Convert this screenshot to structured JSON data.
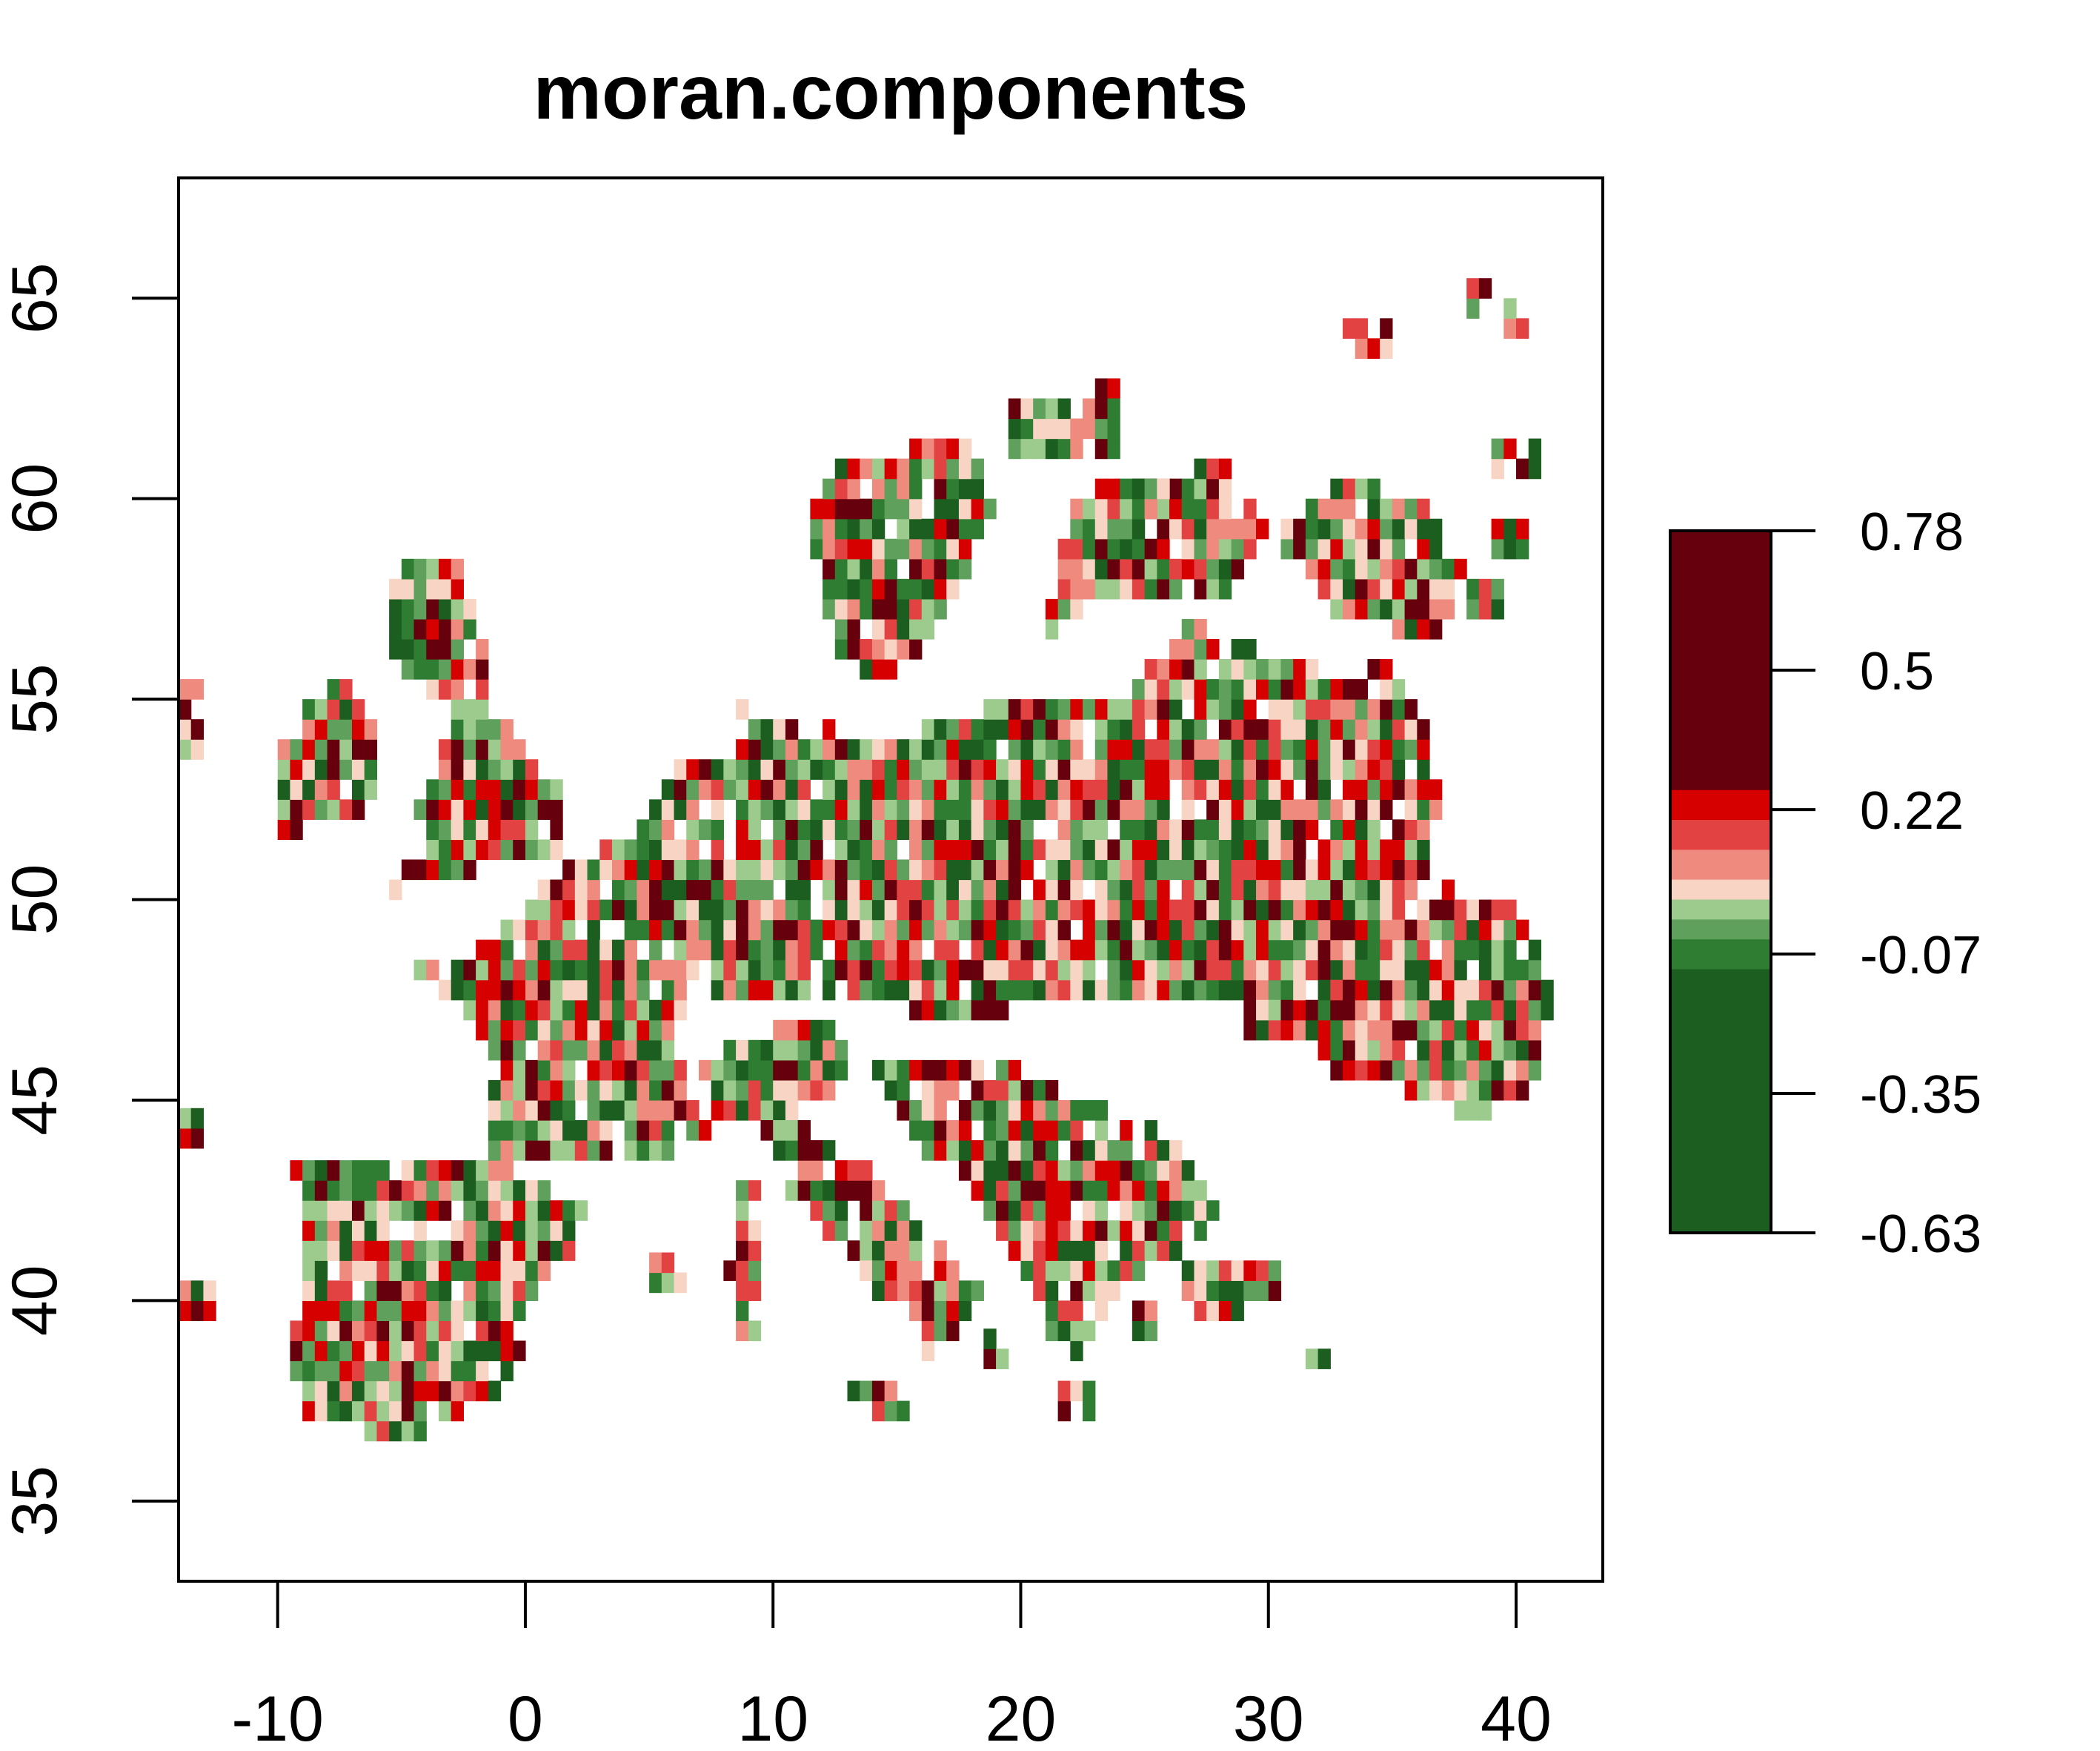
{
  "chart_data": {
    "type": "heatmap",
    "title": "moran.components",
    "xlabel": "",
    "ylabel": "",
    "xlim": [
      -14,
      43.5
    ],
    "ylim": [
      33,
      68
    ],
    "x_ticks": [
      -10,
      0,
      10,
      20,
      30,
      40
    ],
    "x_tick_labels": [
      "-10",
      "0",
      "10",
      "20",
      "30",
      "40"
    ],
    "y_ticks": [
      35,
      40,
      45,
      50,
      55,
      60,
      65
    ],
    "y_tick_labels": [
      "35",
      "40",
      "45",
      "50",
      "55",
      "60",
      "65"
    ],
    "grid": false,
    "legend": {
      "type": "colorbar",
      "position": "right",
      "min": -0.63,
      "max": 0.78,
      "ticks": [
        -0.63,
        -0.35,
        -0.07,
        0.22,
        0.5,
        0.78
      ],
      "tick_labels": [
        "-0.63",
        "-0.35",
        "-0.07",
        "0.22",
        "0.5",
        "0.78"
      ],
      "stops": [
        {
          "from": -0.63,
          "to": -0.1,
          "color": "#1B5E20"
        },
        {
          "from": -0.1,
          "to": -0.04,
          "color": "#2E7D32"
        },
        {
          "from": -0.04,
          "to": 0.0,
          "color": "#5FA05C"
        },
        {
          "from": 0.0,
          "to": 0.04,
          "color": "#9CCB8D"
        },
        {
          "from": 0.04,
          "to": 0.08,
          "color": "#F7D4C4"
        },
        {
          "from": 0.08,
          "to": 0.14,
          "color": "#EE8A7E"
        },
        {
          "from": 0.14,
          "to": 0.2,
          "color": "#E34242"
        },
        {
          "from": 0.2,
          "to": 0.26,
          "color": "#D70000"
        },
        {
          "from": 0.26,
          "to": 0.78,
          "color": "#67000D"
        }
      ]
    },
    "cell_size_degrees": 0.5,
    "palette": [
      "#1B5E20",
      "#2E7D32",
      "#5FA05C",
      "#9CCB8D",
      "#F7D4C4",
      "#EE8A7E",
      "#E34242",
      "#D70000",
      "#67000D"
    ],
    "regions": [
      {
        "name": "Iberia",
        "polygon": [
          [
            -9.5,
            43.7
          ],
          [
            -1.5,
            43.5
          ],
          [
            3.2,
            42.0
          ],
          [
            0.5,
            40.5
          ],
          [
            -0.3,
            39.3
          ],
          [
            0.0,
            38.7
          ],
          [
            -1.5,
            37.5
          ],
          [
            -5.5,
            36.3
          ],
          [
            -7.5,
            37.1
          ],
          [
            -8.9,
            37.0
          ],
          [
            -9.5,
            38.8
          ],
          [
            -8.9,
            40.5
          ],
          [
            -8.8,
            42.0
          ]
        ]
      },
      {
        "name": "France-Benelux",
        "polygon": [
          [
            -4.7,
            48.4
          ],
          [
            -1.5,
            48.8
          ],
          [
            1.6,
            50.9
          ],
          [
            4.5,
            51.6
          ],
          [
            6.0,
            53.4
          ],
          [
            8.5,
            53.7
          ],
          [
            7.5,
            49.0
          ],
          [
            6.0,
            46.5
          ],
          [
            7.5,
            44.0
          ],
          [
            3.0,
            43.3
          ],
          [
            -1.4,
            43.4
          ],
          [
            -1.2,
            46.2
          ],
          [
            -2.5,
            47.3
          ]
        ]
      },
      {
        "name": "Central Europe",
        "polygon": [
          [
            8.5,
            54.8
          ],
          [
            10.5,
            54.5
          ],
          [
            14.5,
            54.0
          ],
          [
            18.5,
            54.8
          ],
          [
            24.0,
            55.0
          ],
          [
            27.0,
            57.0
          ],
          [
            28.5,
            56.5
          ],
          [
            33.0,
            55.5
          ],
          [
            35.0,
            56.0
          ],
          [
            36.5,
            54.0
          ],
          [
            37.0,
            52.0
          ],
          [
            36.0,
            50.0
          ],
          [
            33.0,
            48.0
          ],
          [
            29.5,
            47.5
          ],
          [
            26.5,
            47.5
          ],
          [
            22.5,
            47.6
          ],
          [
            17.5,
            47.0
          ],
          [
            13.5,
            47.5
          ],
          [
            10.5,
            47.4
          ],
          [
            7.5,
            47.6
          ],
          [
            7.0,
            49.5
          ],
          [
            8.5,
            51.5
          ]
        ]
      },
      {
        "name": "Ukraine-East",
        "polygon": [
          [
            29.5,
            49.0
          ],
          [
            33.0,
            49.5
          ],
          [
            37.5,
            50.3
          ],
          [
            40.2,
            49.7
          ],
          [
            41.5,
            47.5
          ],
          [
            40.5,
            45.0
          ],
          [
            38.0,
            44.5
          ],
          [
            36.0,
            45.2
          ],
          [
            33.0,
            45.5
          ],
          [
            31.5,
            46.5
          ],
          [
            29.0,
            46.5
          ],
          [
            28.0,
            48.0
          ]
        ]
      },
      {
        "name": "Great Britain",
        "polygon": [
          [
            -5.5,
            50.1
          ],
          [
            -3.0,
            50.6
          ],
          [
            1.3,
            51.2
          ],
          [
            1.7,
            52.6
          ],
          [
            0.2,
            53.5
          ],
          [
            -1.5,
            55.5
          ],
          [
            -2.0,
            57.5
          ],
          [
            -3.1,
            58.6
          ],
          [
            -5.0,
            58.6
          ],
          [
            -5.7,
            57.0
          ],
          [
            -5.0,
            55.5
          ],
          [
            -3.0,
            54.8
          ],
          [
            -3.5,
            53.3
          ],
          [
            -4.7,
            52.8
          ],
          [
            -4.0,
            51.6
          ]
        ]
      },
      {
        "name": "Ireland",
        "polygon": [
          [
            -10.0,
            51.6
          ],
          [
            -6.3,
            52.2
          ],
          [
            -6.0,
            54.0
          ],
          [
            -6.4,
            55.2
          ],
          [
            -8.0,
            55.3
          ],
          [
            -9.8,
            54.0
          ],
          [
            -10.2,
            52.8
          ]
        ]
      },
      {
        "name": "Scandinavia-south",
        "polygon": [
          [
            12.5,
            56.0
          ],
          [
            14.5,
            55.5
          ],
          [
            16.5,
            56.5
          ],
          [
            19.0,
            59.8
          ],
          [
            18.0,
            61.5
          ],
          [
            13.0,
            61.0
          ],
          [
            11.5,
            59.5
          ]
        ]
      },
      {
        "name": "Baltics-Finland",
        "polygon": [
          [
            21.0,
            56.5
          ],
          [
            24.0,
            57.5
          ],
          [
            28.0,
            57.5
          ],
          [
            30.5,
            59.5
          ],
          [
            27.0,
            60.5
          ],
          [
            22.5,
            60.2
          ],
          [
            21.5,
            58.5
          ]
        ]
      },
      {
        "name": "Italy",
        "polygon": [
          [
            7.0,
            44.2
          ],
          [
            9.0,
            44.4
          ],
          [
            12.0,
            45.0
          ],
          [
            13.7,
            46.5
          ],
          [
            11.0,
            47.0
          ],
          [
            7.0,
            46.0
          ],
          [
            7.5,
            45.0
          ]
        ]
      },
      {
        "name": "Italy-peninsula",
        "polygon": [
          [
            9.5,
            44.4
          ],
          [
            12.4,
            44.2
          ],
          [
            13.5,
            43.6
          ],
          [
            16.0,
            41.9
          ],
          [
            18.5,
            40.1
          ],
          [
            17.0,
            39.0
          ],
          [
            16.0,
            38.0
          ],
          [
            15.7,
            40.0
          ],
          [
            13.0,
            41.2
          ],
          [
            10.5,
            42.9
          ]
        ]
      },
      {
        "name": "Balkans",
        "polygon": [
          [
            13.5,
            46.0
          ],
          [
            16.5,
            46.0
          ],
          [
            19.5,
            46.0
          ],
          [
            22.5,
            45.0
          ],
          [
            26.5,
            44.0
          ],
          [
            28.0,
            42.0
          ],
          [
            26.0,
            41.0
          ],
          [
            24.0,
            40.5
          ],
          [
            22.0,
            38.0
          ],
          [
            21.0,
            39.5
          ],
          [
            19.5,
            41.5
          ],
          [
            18.5,
            42.5
          ],
          [
            16.5,
            43.5
          ]
        ]
      },
      {
        "name": "Anatolia-edge",
        "polygon": [
          [
            26.5,
            41.0
          ],
          [
            29.5,
            41.2
          ],
          [
            31.0,
            40.5
          ],
          [
            28.5,
            39.5
          ],
          [
            27.0,
            39.5
          ]
        ]
      },
      {
        "name": "Russia-NW",
        "polygon": [
          [
            30.0,
            59.0
          ],
          [
            33.0,
            60.5
          ],
          [
            36.0,
            60.0
          ],
          [
            38.0,
            58.5
          ],
          [
            37.0,
            56.5
          ],
          [
            33.0,
            57.0
          ]
        ]
      },
      {
        "name": "Corsica-Sardinia",
        "polygon": [
          [
            8.6,
            42.9
          ],
          [
            9.5,
            42.9
          ],
          [
            9.7,
            39.2
          ],
          [
            8.5,
            39.0
          ],
          [
            8.2,
            40.9
          ]
        ]
      },
      {
        "name": "Sicily",
        "polygon": [
          [
            12.5,
            38.1
          ],
          [
            15.6,
            38.2
          ],
          [
            15.1,
            36.7
          ]
        ]
      }
    ],
    "islands": [
      {
        "x": 5.0,
        "y": 40.2,
        "w": 1.5,
        "h": 0.8
      },
      {
        "x": 13.5,
        "y": 40.0,
        "w": 1.5,
        "h": 0.8
      },
      {
        "x": 18.5,
        "y": 38.3,
        "w": 1.0,
        "h": 0.7
      },
      {
        "x": 21.5,
        "y": 37.0,
        "w": 1.5,
        "h": 0.6
      },
      {
        "x": 24.0,
        "y": 39.0,
        "w": 1.5,
        "h": 0.8
      },
      {
        "x": 31.5,
        "y": 38.3,
        "w": 1.0,
        "h": 0.5
      },
      {
        "x": 33.0,
        "y": 63.5,
        "w": 2.0,
        "h": 1.0
      },
      {
        "x": 38.0,
        "y": 64.5,
        "w": 1.0,
        "h": 0.6
      },
      {
        "x": 39.5,
        "y": 64.0,
        "w": 1.0,
        "h": 0.6
      },
      {
        "x": 39.0,
        "y": 60.5,
        "w": 2.0,
        "h": 1.0
      },
      {
        "x": 39.0,
        "y": 58.5,
        "w": 1.5,
        "h": 0.8
      },
      {
        "x": 38.0,
        "y": 57.0,
        "w": 1.5,
        "h": 0.8
      },
      {
        "x": 27.0,
        "y": 60.0,
        "w": 1.5,
        "h": 1.0
      },
      {
        "x": 23.0,
        "y": 62.0,
        "w": 1.0,
        "h": 0.8
      },
      {
        "x": 24.5,
        "y": 59.5,
        "w": 1.5,
        "h": 0.8
      },
      {
        "x": 19.5,
        "y": 61.0,
        "w": 4.5,
        "h": 1.5
      },
      {
        "x": -14.0,
        "y": 43.8,
        "w": 1.0,
        "h": 0.6
      },
      {
        "x": -14.0,
        "y": 53.5,
        "w": 1.0,
        "h": 2.0
      },
      {
        "x": -14.0,
        "y": 39.5,
        "w": 1.5,
        "h": 0.6
      }
    ]
  }
}
